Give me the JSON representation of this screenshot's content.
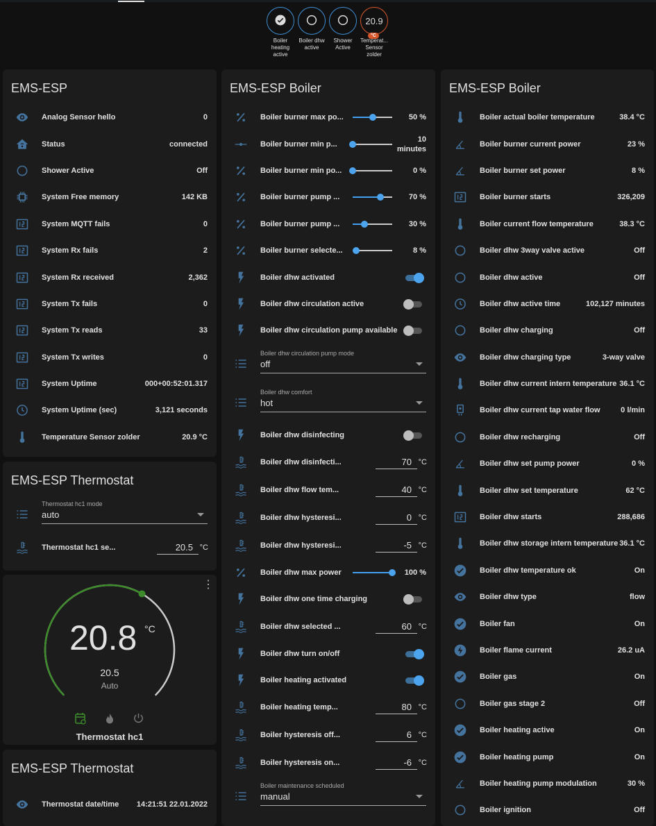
{
  "colors": {
    "accent": "#44a0f0",
    "icon": "#44739e",
    "heat": "#3d8b2a",
    "orange": "#d7562b"
  },
  "badges": [
    {
      "icon": "check-circle",
      "label": "Boiler heating active"
    },
    {
      "icon": "circle-outline",
      "label": "Boiler dhw active"
    },
    {
      "icon": "circle-outline",
      "label": "Shower Active"
    },
    {
      "value": "20.9",
      "unit": "°C",
      "label": "Temperat... Sensor zolder"
    }
  ],
  "cards": {
    "esp": {
      "title": "EMS-ESP",
      "rows": [
        {
          "t": "s",
          "icon": "eye",
          "label": "Analog Sensor hello",
          "value": "0"
        },
        {
          "t": "s",
          "icon": "home",
          "label": "Status",
          "value": "connected"
        },
        {
          "t": "s",
          "icon": "circle",
          "label": "Shower Active",
          "value": "Off"
        },
        {
          "t": "s",
          "icon": "chip",
          "label": "System Free memory",
          "value": "142 KB"
        },
        {
          "t": "s",
          "icon": "counter",
          "label": "System MQTT fails",
          "value": "0"
        },
        {
          "t": "s",
          "icon": "counter",
          "label": "System Rx fails",
          "value": "2"
        },
        {
          "t": "s",
          "icon": "counter",
          "label": "System Rx received",
          "value": "2,362"
        },
        {
          "t": "s",
          "icon": "counter",
          "label": "System Tx fails",
          "value": "0"
        },
        {
          "t": "s",
          "icon": "counter",
          "label": "System Tx reads",
          "value": "33"
        },
        {
          "t": "s",
          "icon": "counter",
          "label": "System Tx writes",
          "value": "0"
        },
        {
          "t": "s",
          "icon": "counter",
          "label": "System Uptime",
          "value": "000+00:52:01.317"
        },
        {
          "t": "s",
          "icon": "clock",
          "label": "System Uptime (sec)",
          "value": "3,121 seconds"
        },
        {
          "t": "s",
          "icon": "thermometer",
          "label": "Temperature Sensor zolder",
          "value": "20.9 °C"
        }
      ]
    },
    "thermostat": {
      "title": "EMS-ESP Thermostat",
      "rows": [
        {
          "t": "sel",
          "icon": "list",
          "label": "Thermostat hc1 mode",
          "value": "auto"
        },
        {
          "t": "n",
          "icon": "water-thermometer",
          "label": "Thermostat hc1 se...",
          "value": "20.5",
          "unit": "°C"
        }
      ]
    },
    "climate": {
      "current": "20.8",
      "unit": "°C",
      "target": "20.5",
      "mode": "Auto",
      "name": "Thermostat hc1",
      "modes": [
        "auto",
        "heat",
        "off"
      ]
    },
    "thermostat2": {
      "title": "EMS-ESP Thermostat",
      "rows": [
        {
          "t": "s",
          "icon": "eye",
          "label": "Thermostat date/time",
          "value": "14:21:51 22.01.2022"
        }
      ]
    },
    "boiler1": {
      "title": "EMS-ESP Boiler",
      "rows": [
        {
          "t": "sl",
          "icon": "percent",
          "label": "Boiler burner max po...",
          "value": "50 %",
          "level": 0.5
        },
        {
          "t": "sl",
          "icon": "ray-vertex",
          "label": "Boiler burner min p...",
          "value": "10 minutes",
          "level": 0
        },
        {
          "t": "sl",
          "icon": "percent",
          "label": "Boiler burner min po...",
          "value": "0 %",
          "level": 0
        },
        {
          "t": "sl",
          "icon": "percent",
          "label": "Boiler burner pump ...",
          "value": "70 %",
          "level": 0.7
        },
        {
          "t": "sl",
          "icon": "percent",
          "label": "Boiler burner pump ...",
          "value": "30 %",
          "level": 0.3
        },
        {
          "t": "sl",
          "icon": "percent",
          "label": "Boiler burner selecte...",
          "value": "8 %",
          "level": 0.08
        },
        {
          "t": "tg",
          "icon": "flash",
          "label": "Boiler dhw activated",
          "on": true
        },
        {
          "t": "tg",
          "icon": "flash",
          "label": "Boiler dhw circulation active",
          "on": false
        },
        {
          "t": "tg",
          "icon": "flash",
          "label": "Boiler dhw circulation pump available",
          "on": false
        },
        {
          "t": "sel",
          "icon": "list",
          "label": "Boiler dhw circulation pump mode",
          "value": "off"
        },
        {
          "t": "sel",
          "icon": "list",
          "label": "Boiler dhw comfort",
          "value": "hot"
        },
        {
          "t": "tg",
          "icon": "flash",
          "label": "Boiler dhw disinfecting",
          "on": false
        },
        {
          "t": "n",
          "icon": "water-thermometer",
          "label": "Boiler dhw disinfecti...",
          "value": "70",
          "unit": "°C"
        },
        {
          "t": "n",
          "icon": "water-thermometer",
          "label": "Boiler dhw flow tem...",
          "value": "40",
          "unit": "°C"
        },
        {
          "t": "n",
          "icon": "water-thermometer",
          "label": "Boiler dhw hysteresi...",
          "value": "0",
          "unit": "°C"
        },
        {
          "t": "n",
          "icon": "water-thermometer",
          "label": "Boiler dhw hysteresi...",
          "value": "-5",
          "unit": "°C"
        },
        {
          "t": "sl",
          "icon": "percent",
          "label": "Boiler dhw max power",
          "value": "100 %",
          "level": 1
        },
        {
          "t": "tg",
          "icon": "flash",
          "label": "Boiler dhw one time charging",
          "on": false
        },
        {
          "t": "n",
          "icon": "water-thermometer",
          "label": "Boiler dhw selected ...",
          "value": "60",
          "unit": "°C"
        },
        {
          "t": "tg",
          "icon": "flash",
          "label": "Boiler dhw turn on/off",
          "on": true
        },
        {
          "t": "tg",
          "icon": "flash",
          "label": "Boiler heating activated",
          "on": true
        },
        {
          "t": "n",
          "icon": "water-thermometer",
          "label": "Boiler heating temp...",
          "value": "80",
          "unit": "°C"
        },
        {
          "t": "n",
          "icon": "water-thermometer",
          "label": "Boiler hysteresis off...",
          "value": "6",
          "unit": "°C"
        },
        {
          "t": "n",
          "icon": "water-thermometer",
          "label": "Boiler hysteresis on...",
          "value": "-6",
          "unit": "°C"
        },
        {
          "t": "sel",
          "icon": "list",
          "label": "Boiler maintenance scheduled",
          "value": "manual"
        }
      ]
    },
    "boiler2": {
      "title": "EMS-ESP Boiler",
      "rows": [
        {
          "t": "s",
          "icon": "thermometer",
          "label": "Boiler actual boiler temperature",
          "value": "38.4 °C"
        },
        {
          "t": "s",
          "icon": "angle",
          "label": "Boiler burner current power",
          "value": "23 %"
        },
        {
          "t": "s",
          "icon": "angle",
          "label": "Boiler burner set power",
          "value": "8 %"
        },
        {
          "t": "s",
          "icon": "counter",
          "label": "Boiler burner starts",
          "value": "326,209"
        },
        {
          "t": "s",
          "icon": "thermometer",
          "label": "Boiler current flow temperature",
          "value": "38.3 °C"
        },
        {
          "t": "s",
          "icon": "circle",
          "label": "Boiler dhw 3way valve active",
          "value": "Off"
        },
        {
          "t": "s",
          "icon": "circle",
          "label": "Boiler dhw active",
          "value": "Off"
        },
        {
          "t": "s",
          "icon": "clock",
          "label": "Boiler dhw active time",
          "value": "102,127 minutes"
        },
        {
          "t": "s",
          "icon": "circle",
          "label": "Boiler dhw charging",
          "value": "Off"
        },
        {
          "t": "s",
          "icon": "eye",
          "label": "Boiler dhw charging type",
          "value": "3-way valve"
        },
        {
          "t": "s",
          "icon": "thermometer",
          "label": "Boiler dhw current intern temperature",
          "value": "36.1 °C"
        },
        {
          "t": "s",
          "icon": "faucet",
          "label": "Boiler dhw current tap water flow",
          "value": "0 l/min"
        },
        {
          "t": "s",
          "icon": "circle",
          "label": "Boiler dhw recharging",
          "value": "Off"
        },
        {
          "t": "s",
          "icon": "angle",
          "label": "Boiler dhw set pump power",
          "value": "0 %"
        },
        {
          "t": "s",
          "icon": "thermometer",
          "label": "Boiler dhw set temperature",
          "value": "62 °C"
        },
        {
          "t": "s",
          "icon": "counter",
          "label": "Boiler dhw starts",
          "value": "288,686"
        },
        {
          "t": "s",
          "icon": "thermometer",
          "label": "Boiler dhw storage intern temperature",
          "value": "36.1 °C"
        },
        {
          "t": "s",
          "icon": "check-circle",
          "label": "Boiler dhw temperature ok",
          "value": "On"
        },
        {
          "t": "s",
          "icon": "eye",
          "label": "Boiler dhw type",
          "value": "flow"
        },
        {
          "t": "s",
          "icon": "check-circle",
          "label": "Boiler fan",
          "value": "On"
        },
        {
          "t": "s",
          "icon": "flash-circle",
          "label": "Boiler flame current",
          "value": "26.2 uA"
        },
        {
          "t": "s",
          "icon": "check-circle",
          "label": "Boiler gas",
          "value": "On"
        },
        {
          "t": "s",
          "icon": "circle",
          "label": "Boiler gas stage 2",
          "value": "Off"
        },
        {
          "t": "s",
          "icon": "check-circle",
          "label": "Boiler heating active",
          "value": "On"
        },
        {
          "t": "s",
          "icon": "check-circle",
          "label": "Boiler heating pump",
          "value": "On"
        },
        {
          "t": "s",
          "icon": "angle",
          "label": "Boiler heating pump modulation",
          "value": "30 %"
        },
        {
          "t": "s",
          "icon": "circle",
          "label": "Boiler ignition",
          "value": "Off"
        }
      ]
    }
  }
}
